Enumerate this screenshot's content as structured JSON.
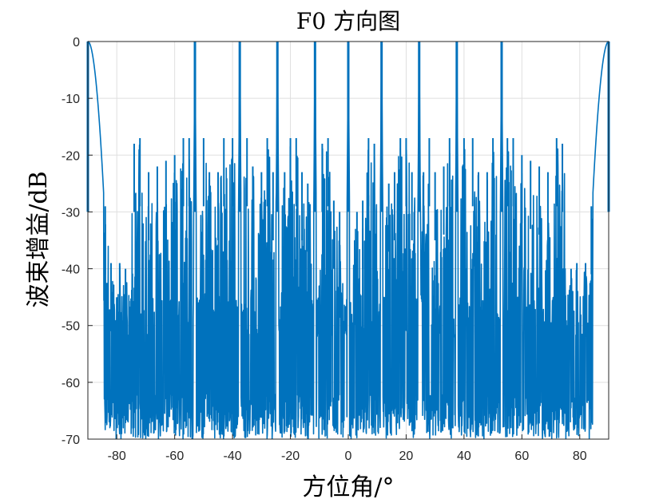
{
  "chart_data": {
    "type": "line",
    "title": "F0 方向图",
    "xlabel": "方位角/°",
    "ylabel": "波束增益/dB",
    "xlim": [
      -90,
      90
    ],
    "ylim": [
      -70,
      0
    ],
    "xticks": [
      -80,
      -60,
      -40,
      -20,
      0,
      20,
      40,
      60,
      80
    ],
    "yticks": [
      0,
      -10,
      -20,
      -30,
      -40,
      -50,
      -60,
      -70
    ],
    "grid": true,
    "line_color": "#0072BD",
    "main_lobes_deg": [
      -90,
      -53,
      -37.5,
      -24.5,
      -11.5,
      0,
      11.5,
      24.5,
      37.5,
      53,
      90
    ],
    "sidelobe_peaks": {
      "x": [
        -84,
        -82,
        -79,
        -77,
        -74,
        -72,
        -69,
        -66,
        -63,
        -60,
        -57,
        -55,
        -50,
        -48,
        -45,
        -43,
        -40,
        -35,
        -33,
        -30,
        -28,
        -26,
        -22,
        -20,
        -18,
        -16,
        -14,
        -9,
        -7,
        -5,
        -3,
        3,
        5,
        7,
        9,
        14,
        16,
        18,
        20,
        22,
        26,
        28,
        30,
        33,
        35,
        40,
        43,
        45,
        48,
        50,
        55,
        57,
        60,
        63,
        66,
        69,
        72,
        74,
        77,
        79,
        82,
        84
      ],
      "y": [
        -29,
        -39,
        -39,
        -40,
        -18,
        -17,
        -23,
        -22,
        -21,
        -20,
        -17,
        -17,
        -17,
        -23,
        -23,
        -17,
        -17,
        -17,
        -22,
        -23,
        -17,
        -23,
        -23,
        -17,
        -17,
        -23,
        -25,
        -18,
        -17,
        -28,
        -30,
        -30,
        -28,
        -17,
        -18,
        -25,
        -23,
        -17,
        -17,
        -23,
        -23,
        -17,
        -23,
        -22,
        -17,
        -17,
        -17,
        -23,
        -23,
        -17,
        -17,
        -17,
        -20,
        -21,
        -22,
        -23,
        -17,
        -18,
        -40,
        -39,
        -39,
        -29
      ]
    },
    "noise_floor_range": [
      -70,
      -45
    ],
    "edge_sidelobe_level": -40
  }
}
